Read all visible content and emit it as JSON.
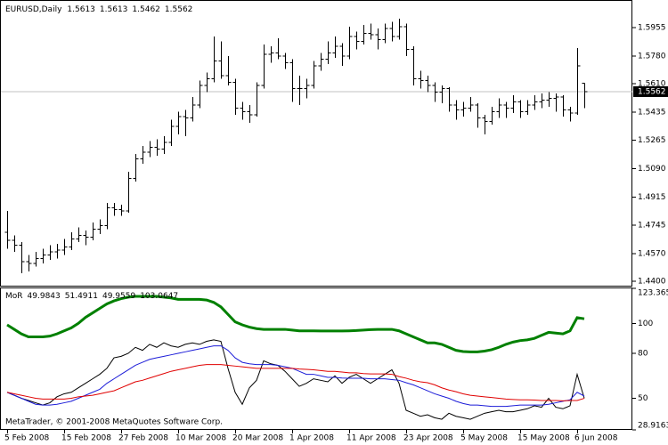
{
  "chart_data": [
    {
      "type": "ohlc",
      "title": "EURUSD,Daily",
      "color": "#000000",
      "current_price_line": true,
      "categories": [
        "5 Feb 2008",
        null,
        null,
        null,
        null,
        null,
        null,
        null,
        "15 Feb 2008",
        null,
        null,
        null,
        null,
        null,
        null,
        null,
        "27 Feb 2008",
        null,
        null,
        null,
        null,
        null,
        null,
        null,
        "10 Mar 2008",
        null,
        null,
        null,
        null,
        null,
        null,
        null,
        "20 Mar 2008",
        null,
        null,
        null,
        null,
        null,
        null,
        null,
        "1 Apr 2008",
        null,
        null,
        null,
        null,
        null,
        null,
        null,
        "11 Apr 2008",
        null,
        null,
        null,
        null,
        null,
        null,
        null,
        "23 Apr 2008",
        null,
        null,
        null,
        null,
        null,
        null,
        null,
        "5 May 2008",
        null,
        null,
        null,
        null,
        null,
        null,
        null,
        "15 May 2008",
        null,
        null,
        null,
        null,
        null,
        null,
        null,
        "6 Jun 2008",
        null
      ],
      "open": [
        1.47,
        1.465,
        1.462,
        1.452,
        1.451,
        1.454,
        1.456,
        1.458,
        1.459,
        1.461,
        1.466,
        1.468,
        1.467,
        1.472,
        1.474,
        1.485,
        1.484,
        1.483,
        1.503,
        1.515,
        1.519,
        1.522,
        1.521,
        1.525,
        1.535,
        1.541,
        1.54,
        1.548,
        1.56,
        1.564,
        1.575,
        1.566,
        1.562,
        1.546,
        1.544,
        1.542,
        1.56,
        1.579,
        1.58,
        1.578,
        1.574,
        1.558,
        1.558,
        1.56,
        1.572,
        1.576,
        1.58,
        1.584,
        1.578,
        1.59,
        1.587,
        1.592,
        1.591,
        1.588,
        1.595,
        1.59,
        1.596,
        1.582,
        1.564,
        1.563,
        1.56,
        1.556,
        1.558,
        1.548,
        1.545,
        1.546,
        1.548,
        1.54,
        1.538,
        1.544,
        1.548,
        1.546,
        1.55,
        1.544,
        1.548,
        1.55,
        1.551,
        1.552,
        1.553,
        1.545,
        1.543,
        1.5613
      ],
      "high": [
        1.483,
        1.468,
        1.464,
        1.456,
        1.458,
        1.46,
        1.462,
        1.463,
        1.466,
        1.47,
        1.473,
        1.471,
        1.476,
        1.478,
        1.488,
        1.488,
        1.487,
        1.507,
        1.518,
        1.523,
        1.526,
        1.527,
        1.529,
        1.539,
        1.544,
        1.545,
        1.553,
        1.563,
        1.568,
        1.59,
        1.587,
        1.578,
        1.564,
        1.55,
        1.548,
        1.562,
        1.585,
        1.584,
        1.589,
        1.58,
        1.576,
        1.566,
        1.564,
        1.575,
        1.58,
        1.587,
        1.59,
        1.586,
        1.596,
        1.593,
        1.597,
        1.598,
        1.595,
        1.598,
        1.599,
        1.601,
        1.598,
        1.584,
        1.569,
        1.566,
        1.562,
        1.56,
        1.559,
        1.551,
        1.55,
        1.553,
        1.549,
        1.542,
        1.547,
        1.552,
        1.55,
        1.554,
        1.551,
        1.551,
        1.554,
        1.555,
        1.556,
        1.555,
        1.554,
        1.547,
        1.583,
        1.5613
      ],
      "low": [
        1.46,
        1.458,
        1.445,
        1.446,
        1.449,
        1.451,
        1.453,
        1.454,
        1.456,
        1.459,
        1.464,
        1.462,
        1.465,
        1.469,
        1.472,
        1.48,
        1.48,
        1.482,
        1.501,
        1.512,
        1.516,
        1.517,
        1.518,
        1.523,
        1.53,
        1.529,
        1.538,
        1.546,
        1.556,
        1.562,
        1.564,
        1.56,
        1.542,
        1.539,
        1.537,
        1.541,
        1.558,
        1.574,
        1.576,
        1.57,
        1.55,
        1.548,
        1.552,
        1.558,
        1.569,
        1.573,
        1.577,
        1.572,
        1.576,
        1.582,
        1.585,
        1.588,
        1.582,
        1.586,
        1.587,
        1.588,
        1.578,
        1.56,
        1.558,
        1.556,
        1.55,
        1.549,
        1.544,
        1.539,
        1.541,
        1.544,
        1.534,
        1.53,
        1.536,
        1.54,
        1.54,
        1.543,
        1.54,
        1.542,
        1.545,
        1.546,
        1.547,
        1.544,
        1.541,
        1.538,
        1.542,
        1.5462
      ],
      "close": [
        1.465,
        1.462,
        1.452,
        1.451,
        1.454,
        1.456,
        1.458,
        1.459,
        1.461,
        1.466,
        1.468,
        1.467,
        1.472,
        1.474,
        1.485,
        1.484,
        1.483,
        1.503,
        1.515,
        1.519,
        1.522,
        1.521,
        1.525,
        1.535,
        1.541,
        1.54,
        1.548,
        1.56,
        1.564,
        1.575,
        1.566,
        1.562,
        1.546,
        1.544,
        1.542,
        1.56,
        1.579,
        1.58,
        1.578,
        1.574,
        1.558,
        1.558,
        1.56,
        1.572,
        1.576,
        1.58,
        1.584,
        1.578,
        1.59,
        1.587,
        1.592,
        1.591,
        1.588,
        1.595,
        1.59,
        1.596,
        1.582,
        1.564,
        1.563,
        1.56,
        1.556,
        1.558,
        1.548,
        1.545,
        1.546,
        1.548,
        1.54,
        1.538,
        1.544,
        1.548,
        1.546,
        1.55,
        1.544,
        1.548,
        1.55,
        1.551,
        1.552,
        1.553,
        1.545,
        1.543,
        1.572,
        1.5562
      ],
      "ylim": [
        1.4373,
        1.6118
      ],
      "yticks": [
        1.5955,
        {
          "value": 1.578,
          "label": "1.5780"
        },
        {
          "value": 1.561,
          "label": "1.5610"
        },
        1.5435,
        1.5265,
        {
          "value": 1.509,
          "label": "1.5090"
        },
        1.4915,
        1.4745,
        {
          "value": 1.457,
          "label": "1.4570"
        },
        {
          "value": 1.44,
          "label": "1.4400"
        }
      ]
    },
    {
      "type": "line",
      "title": "MoR",
      "annotation": "MetaTrader, © 2001-2008 MetaQuotes Software Corp.",
      "series": [
        {
          "color": "#000000",
          "values": [
            54,
            52,
            50,
            48.5,
            47,
            45.5,
            47,
            51,
            53,
            54,
            57,
            60,
            63,
            66,
            70,
            77,
            78,
            80,
            84,
            82,
            86,
            84,
            87,
            85,
            84,
            86,
            87,
            86,
            88,
            89,
            88,
            70,
            54,
            46,
            57,
            62,
            75,
            73,
            72,
            68,
            63,
            58,
            60,
            63,
            62,
            61,
            65,
            60,
            64,
            66,
            63,
            60,
            63,
            66,
            69,
            60,
            42,
            40,
            38,
            39,
            37,
            36,
            40,
            38,
            37,
            36,
            38,
            40,
            41,
            42,
            41,
            41,
            42,
            43,
            45,
            44,
            50,
            44,
            43,
            45,
            66,
            49.9843
          ]
        },
        {
          "color": "#1c1cd8",
          "values": [
            54,
            52,
            50,
            48,
            46,
            45.5,
            45.5,
            46,
            47,
            48,
            50,
            52,
            54,
            56,
            60,
            63,
            66,
            69,
            72,
            74,
            76,
            77,
            78,
            79,
            80,
            81,
            82,
            83,
            84,
            85,
            85,
            82,
            77,
            74,
            73,
            72.5,
            72.5,
            72.5,
            72,
            71,
            70,
            68,
            66,
            66,
            65,
            64,
            64,
            63.5,
            63.4,
            63.4,
            63.4,
            63,
            63,
            63,
            62.5,
            62,
            60.4,
            59,
            57,
            55,
            53,
            51.5,
            50,
            48,
            46.5,
            45.5,
            45.5,
            45,
            44.6,
            44.6,
            44.6,
            45,
            45.5,
            45.5,
            45.5,
            45.5,
            46,
            47,
            48,
            49,
            54,
            51.4911
          ]
        },
        {
          "color": "#e00000",
          "values": [
            54,
            53,
            52,
            51,
            50,
            49.5,
            49.5,
            49.5,
            49.5,
            50,
            51,
            51.5,
            52,
            53,
            54,
            55,
            57,
            59,
            61,
            62,
            63.5,
            65,
            66.5,
            68,
            69,
            70,
            71,
            72,
            72.5,
            72.5,
            72.5,
            72,
            71.5,
            71,
            70.5,
            70,
            70,
            70,
            70,
            70,
            70,
            69.5,
            69.3,
            69,
            68.5,
            68,
            68,
            67.5,
            67,
            67,
            66.5,
            66.3,
            66.3,
            66.3,
            66,
            64.5,
            63.4,
            62,
            61,
            60.4,
            59,
            57,
            55.5,
            54.4,
            53,
            52,
            51.5,
            51,
            50.5,
            50,
            49.5,
            49.2,
            49,
            49,
            48.8,
            48.5,
            48.5,
            48.5,
            48.3,
            48.5,
            48.5,
            49.9559
          ]
        },
        {
          "color": "#008000",
          "values": [
            99,
            96,
            93,
            91,
            91,
            91,
            91.5,
            93,
            95,
            97,
            100,
            104,
            107,
            110,
            113,
            115,
            116.5,
            117.5,
            118,
            118,
            118,
            118,
            117.5,
            117,
            116,
            116,
            116,
            116,
            115.6,
            114,
            111,
            106,
            101,
            99,
            97.5,
            96.5,
            96,
            96,
            96,
            96,
            95.5,
            95,
            95,
            95,
            94.9,
            94.9,
            94.9,
            94.9,
            95,
            95.2,
            95.5,
            95.8,
            96,
            96,
            96,
            95,
            93,
            91,
            89,
            87,
            87,
            86,
            84,
            82,
            81.2,
            81,
            81,
            81.5,
            82.4,
            84,
            86,
            87.5,
            88.5,
            89,
            90,
            92,
            94,
            93.5,
            93,
            95,
            103.8,
            103.0647
          ]
        }
      ],
      "ylim": [
        28.9163,
        123.3656
      ],
      "yticks": [
        123.3656,
        100,
        80,
        50,
        28.9163
      ]
    }
  ]
}
